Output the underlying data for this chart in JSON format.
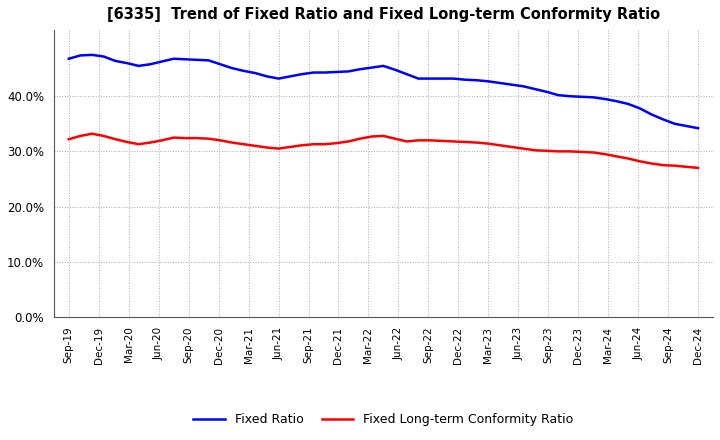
{
  "title": "[6335]  Trend of Fixed Ratio and Fixed Long-term Conformity Ratio",
  "x_labels": [
    "Sep-19",
    "Dec-19",
    "Mar-20",
    "Jun-20",
    "Sep-20",
    "Dec-20",
    "Mar-21",
    "Jun-21",
    "Sep-21",
    "Dec-21",
    "Mar-22",
    "Jun-22",
    "Sep-22",
    "Dec-22",
    "Mar-23",
    "Jun-23",
    "Sep-23",
    "Dec-23",
    "Mar-24",
    "Jun-24",
    "Sep-24",
    "Dec-24"
  ],
  "fixed_ratio": [
    0.468,
    0.474,
    0.475,
    0.472,
    0.464,
    0.46,
    0.455,
    0.458,
    0.463,
    0.468,
    0.467,
    0.466,
    0.465,
    0.458,
    0.451,
    0.446,
    0.442,
    0.436,
    0.432,
    0.436,
    0.44,
    0.443,
    0.443,
    0.444,
    0.445,
    0.449,
    0.452,
    0.455,
    0.448,
    0.44,
    0.432,
    0.432,
    0.432,
    0.432,
    0.43,
    0.429,
    0.427,
    0.424,
    0.421,
    0.418,
    0.413,
    0.408,
    0.402,
    0.4,
    0.399,
    0.398,
    0.395,
    0.391,
    0.386,
    0.378,
    0.367,
    0.358,
    0.35,
    0.346,
    0.342
  ],
  "fixed_lt_ratio": [
    0.322,
    0.328,
    0.332,
    0.328,
    0.322,
    0.317,
    0.313,
    0.316,
    0.32,
    0.325,
    0.324,
    0.324,
    0.323,
    0.32,
    0.316,
    0.313,
    0.31,
    0.307,
    0.305,
    0.308,
    0.311,
    0.313,
    0.313,
    0.315,
    0.318,
    0.323,
    0.327,
    0.328,
    0.323,
    0.318,
    0.32,
    0.32,
    0.319,
    0.318,
    0.317,
    0.316,
    0.314,
    0.311,
    0.308,
    0.305,
    0.302,
    0.301,
    0.3,
    0.3,
    0.299,
    0.298,
    0.295,
    0.291,
    0.287,
    0.282,
    0.278,
    0.275,
    0.274,
    0.272,
    0.27
  ],
  "fixed_ratio_color": "#0000FF",
  "fixed_lt_ratio_color": "#FF0000",
  "background_color": "#FFFFFF",
  "plot_bg_color": "#FFFFFF",
  "grid_color": "#AAAAAA",
  "ylim": [
    0.0,
    0.52
  ],
  "yticks": [
    0.0,
    0.1,
    0.2,
    0.3,
    0.4
  ],
  "line_width": 1.8,
  "legend_fixed_ratio": "Fixed Ratio",
  "legend_fixed_lt_ratio": "Fixed Long-term Conformity Ratio"
}
